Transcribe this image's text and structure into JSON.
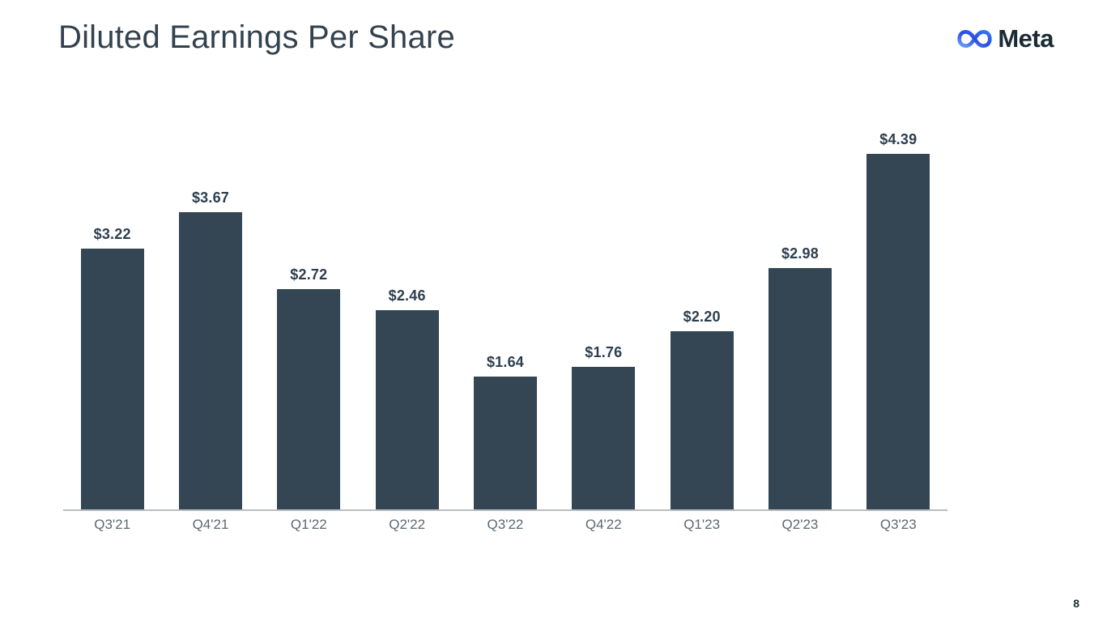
{
  "header": {
    "title": "Diluted Earnings Per Share",
    "logo_text": "Meta"
  },
  "footer": {
    "page_number": "8"
  },
  "colors": {
    "bar": "#344653",
    "title": "#33424f",
    "value_label": "#2d3e4e",
    "tick_label": "#5d6973",
    "axis_line": "#babdc0",
    "logo_text": "#1c2b33",
    "logo_gradient_start": "#6ba0fa",
    "logo_gradient_mid": "#2b4be0",
    "logo_gradient_end": "#3179f2"
  },
  "chart_data": {
    "type": "bar",
    "title": "Diluted Earnings Per Share",
    "categories": [
      "Q3'21",
      "Q4'21",
      "Q1'22",
      "Q2'22",
      "Q3'22",
      "Q4'22",
      "Q1'23",
      "Q2'23",
      "Q3'23"
    ],
    "values": [
      3.22,
      3.67,
      2.72,
      2.46,
      1.64,
      1.76,
      2.2,
      2.98,
      4.39
    ],
    "value_labels": [
      "$3.22",
      "$3.67",
      "$2.72",
      "$2.46",
      "$1.64",
      "$1.76",
      "$2.20",
      "$2.98",
      "$4.39"
    ],
    "xlabel": "",
    "ylabel": "",
    "ylim": [
      0,
      4.39
    ],
    "grid": false,
    "legend": "none",
    "value_label_position": "above-bar",
    "bar_color": "#344653"
  }
}
